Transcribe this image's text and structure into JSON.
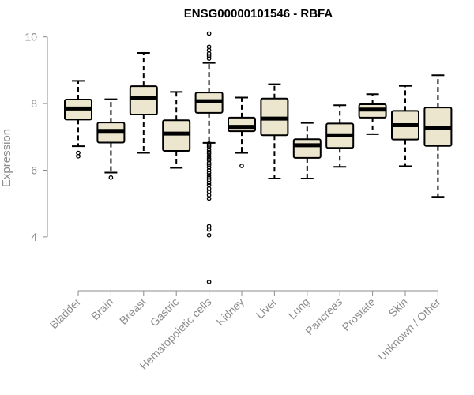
{
  "chart_data": {
    "type": "boxplot",
    "title": "ENSG00000101546 - RBFA",
    "xlabel": "",
    "ylabel": "Expression",
    "ylim": [
      2.5,
      10.3
    ],
    "yticks": [
      4,
      6,
      8,
      10
    ],
    "box_fill": "#ede6cf",
    "box_stroke": "#000000",
    "categories": [
      "Bladder",
      "Brain",
      "Breast",
      "Gastric",
      "Hematopoietic cells",
      "Kidney",
      "Liver",
      "Lung",
      "Pancreas",
      "Prostate",
      "Skin",
      "Unknown / Other"
    ],
    "boxes": [
      {
        "whisker_low": 6.72,
        "q1": 7.52,
        "median": 7.85,
        "q3": 8.12,
        "whisker_high": 8.68,
        "outliers": [
          6.42,
          6.52
        ]
      },
      {
        "whisker_low": 5.93,
        "q1": 6.83,
        "median": 7.18,
        "q3": 7.43,
        "whisker_high": 8.13,
        "outliers": [
          5.78
        ]
      },
      {
        "whisker_low": 6.52,
        "q1": 7.67,
        "median": 8.17,
        "q3": 8.52,
        "whisker_high": 9.52,
        "outliers": []
      },
      {
        "whisker_low": 6.07,
        "q1": 6.58,
        "median": 7.1,
        "q3": 7.5,
        "whisker_high": 8.35,
        "outliers": []
      },
      {
        "whisker_low": 6.82,
        "q1": 7.72,
        "median": 8.07,
        "q3": 8.33,
        "whisker_high": 9.22,
        "outliers": [
          10.1,
          9.7,
          9.6,
          9.5,
          9.42,
          9.35,
          6.8,
          6.75,
          6.7,
          6.62,
          6.55,
          6.5,
          6.42,
          6.35,
          6.3,
          6.22,
          6.15,
          6.08,
          6.0,
          5.92,
          5.85,
          5.78,
          5.7,
          5.62,
          5.55,
          5.45,
          5.35,
          5.25,
          5.15,
          4.32,
          4.22,
          4.05,
          2.65
        ]
      },
      {
        "whisker_low": 6.52,
        "q1": 7.17,
        "median": 7.3,
        "q3": 7.58,
        "whisker_high": 8.18,
        "outliers": [
          6.13
        ]
      },
      {
        "whisker_low": 5.75,
        "q1": 7.05,
        "median": 7.55,
        "q3": 8.15,
        "whisker_high": 8.58,
        "outliers": []
      },
      {
        "whisker_low": 5.75,
        "q1": 6.37,
        "median": 6.75,
        "q3": 6.93,
        "whisker_high": 7.42,
        "outliers": []
      },
      {
        "whisker_low": 6.1,
        "q1": 6.67,
        "median": 7.05,
        "q3": 7.4,
        "whisker_high": 7.95,
        "outliers": []
      },
      {
        "whisker_low": 7.08,
        "q1": 7.58,
        "median": 7.82,
        "q3": 7.98,
        "whisker_high": 8.28,
        "outliers": []
      },
      {
        "whisker_low": 6.12,
        "q1": 6.92,
        "median": 7.35,
        "q3": 7.78,
        "whisker_high": 8.53,
        "outliers": []
      },
      {
        "whisker_low": 5.2,
        "q1": 6.73,
        "median": 7.27,
        "q3": 7.88,
        "whisker_high": 8.85,
        "outliers": []
      }
    ]
  }
}
